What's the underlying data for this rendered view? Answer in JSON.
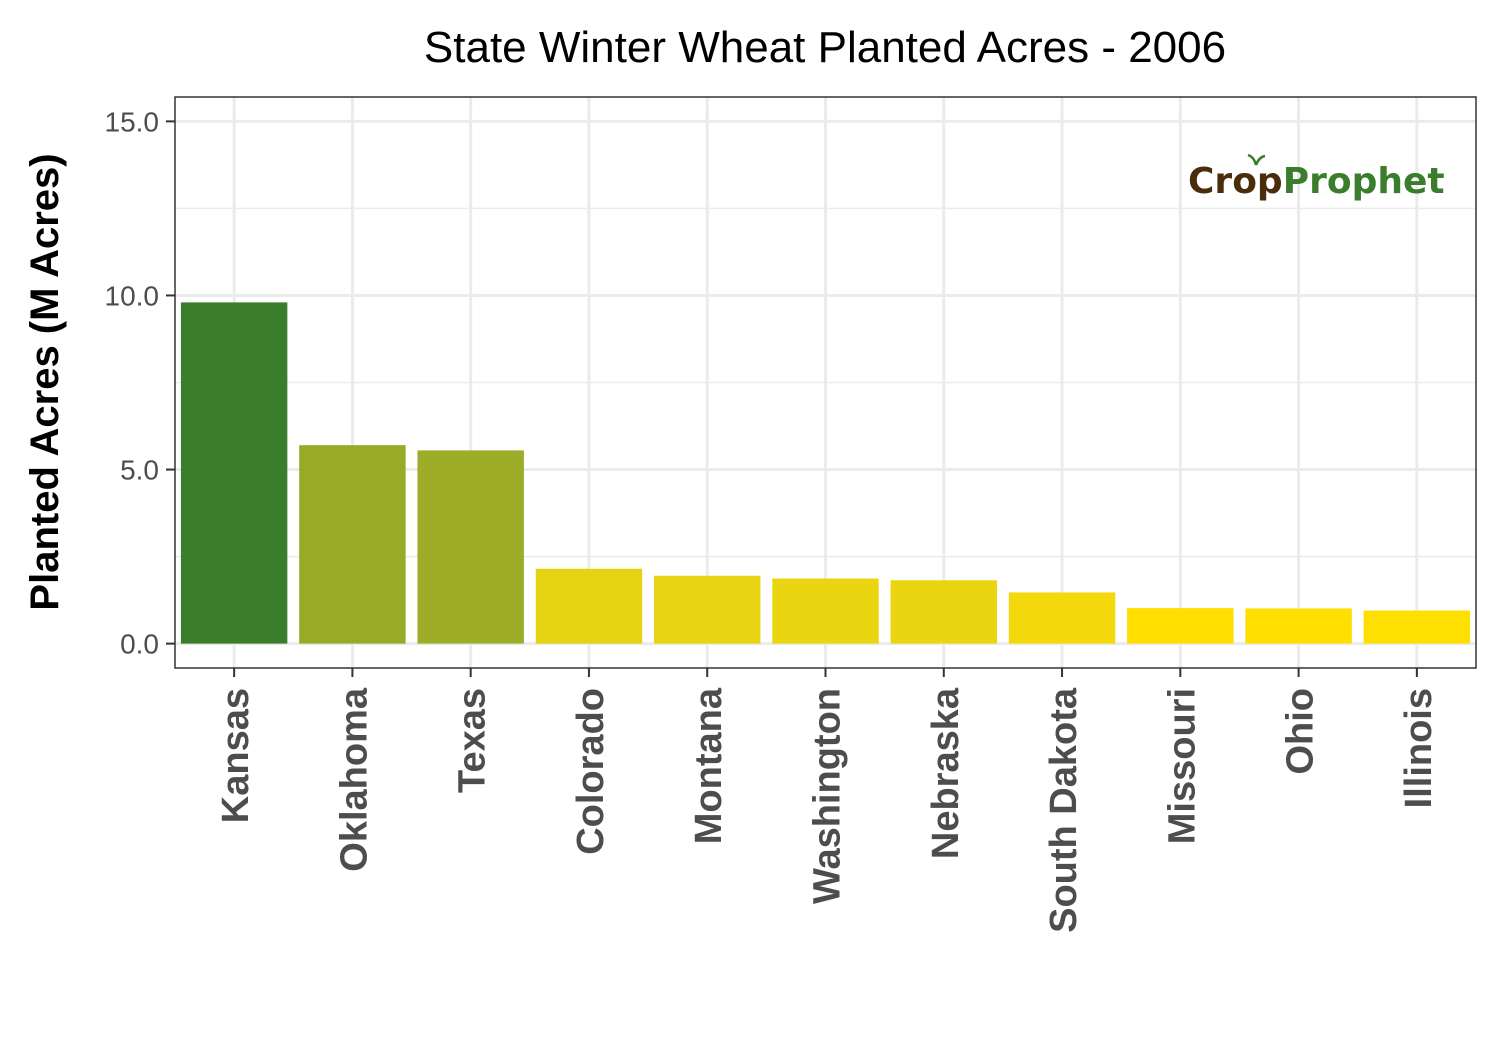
{
  "chart_data": {
    "type": "bar",
    "title": "State Winter Wheat Planted Acres - 2006",
    "xlabel": "",
    "ylabel": "Planted Acres (M Acres)",
    "categories": [
      "Kansas",
      "Oklahoma",
      "Texas",
      "Colorado",
      "Montana",
      "Washington",
      "Nebraska",
      "South Dakota",
      "Missouri",
      "Ohio",
      "Illinois"
    ],
    "values": [
      9.8,
      5.7,
      5.55,
      2.15,
      1.95,
      1.87,
      1.82,
      1.47,
      1.02,
      1.01,
      0.95
    ],
    "bar_colors": [
      "#3a7d2c",
      "#98ab27",
      "#9dad27",
      "#e4d213",
      "#e8d412",
      "#ead511",
      "#ebd511",
      "#f2d80d",
      "#ffde00",
      "#ffde00",
      "#ffdf00"
    ],
    "ylim": [
      -0.7,
      15.7
    ],
    "yticks": [
      0,
      5,
      10,
      15
    ],
    "ytick_labels": [
      "0.0",
      "5.0",
      "10.0",
      "15.0"
    ],
    "grid": true,
    "legend": "none"
  },
  "watermark": {
    "part1": "Cr",
    "part2": "p",
    "part3": "Prophet",
    "color_brown": "#4a2e0c",
    "color_green": "#3a7d2c"
  }
}
